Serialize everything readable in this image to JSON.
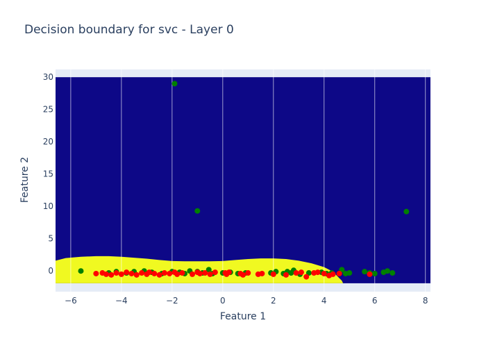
{
  "chart_data": {
    "type": "scatter",
    "title": "Decision boundary for svc - Layer 0",
    "xlabel": "Feature 1",
    "ylabel": "Feature 2",
    "xlim": [
      -6.6,
      8.2
    ],
    "ylim": [
      -3.2,
      31.2
    ],
    "x_ticks": [
      -6,
      -4,
      -2,
      0,
      2,
      4,
      6,
      8
    ],
    "y_ticks": [
      0,
      5,
      10,
      15,
      20,
      25,
      30
    ],
    "grid": true,
    "legend": "none",
    "colors": {
      "background": "#e5ecf6",
      "region_class_0": "#0d0887",
      "region_class_1": "#f0f921",
      "class_0_points": "#ff0000",
      "class_1_points": "#008000"
    },
    "regions": {
      "x_range": [
        -6.6,
        8.2
      ],
      "y_range": [
        -1.9,
        30
      ],
      "boundary_x": [
        -6.6,
        -6.2,
        -5.6,
        -5.0,
        -4.5,
        -4.0,
        -3.5,
        -3.0,
        -2.5,
        -2.0,
        -1.5,
        -1.0,
        -0.5,
        0.0,
        0.5,
        1.0,
        1.5,
        2.0,
        2.5,
        3.0,
        3.5,
        4.0,
        4.3,
        4.5,
        4.6,
        4.7,
        4.75
      ],
      "boundary_y": [
        1.6,
        2.0,
        2.2,
        2.3,
        2.3,
        2.2,
        2.05,
        1.9,
        1.7,
        1.55,
        1.5,
        1.5,
        1.5,
        1.55,
        1.7,
        1.85,
        1.95,
        1.95,
        1.85,
        1.6,
        1.2,
        0.6,
        0.0,
        -0.7,
        -1.1,
        -1.5,
        -1.9
      ]
    },
    "series": [
      {
        "class": 1,
        "x": [
          -5.6,
          -4.5,
          -4.2,
          -3.8,
          -3.5,
          -3.1,
          -2.8,
          -2.4,
          -2.0,
          -1.7,
          -1.5,
          -1.3,
          -1.0,
          -0.8,
          -0.55,
          -0.4,
          0.0,
          0.3,
          0.6,
          0.9,
          1.9,
          2.1,
          2.4,
          2.55,
          2.7,
          2.8,
          3.05,
          3.4,
          3.9,
          4.1,
          4.3,
          4.7,
          4.85,
          5.0,
          5.6,
          5.8,
          6.0,
          6.35,
          6.5,
          6.7,
          7.25,
          -1.9,
          -1.0
        ],
        "y": [
          0.0,
          -0.3,
          -0.1,
          -0.3,
          -0.1,
          0.0,
          -0.2,
          -0.4,
          -0.1,
          -0.2,
          -0.4,
          0.0,
          -0.1,
          -0.3,
          0.2,
          -0.4,
          -0.3,
          -0.2,
          -0.4,
          -0.3,
          -0.3,
          -0.1,
          -0.4,
          -0.1,
          -0.3,
          0.1,
          -0.5,
          -0.3,
          -0.2,
          -0.4,
          -0.3,
          0.2,
          -0.4,
          -0.3,
          -0.1,
          -0.3,
          -0.4,
          -0.2,
          0.0,
          -0.3,
          9.2,
          29.0,
          9.3
        ]
      },
      {
        "class": 0,
        "x": [
          -5.0,
          -4.75,
          -4.6,
          -4.4,
          -4.2,
          -4.0,
          -3.8,
          -3.6,
          -3.4,
          -3.2,
          -3.0,
          -2.9,
          -2.7,
          -2.5,
          -2.3,
          -2.1,
          -1.9,
          -1.8,
          -1.6,
          -1.2,
          -1.0,
          -0.9,
          -0.7,
          -0.5,
          -0.3,
          0.1,
          0.15,
          0.25,
          0.7,
          0.8,
          1.0,
          1.4,
          1.55,
          2.0,
          2.5,
          2.9,
          3.1,
          3.3,
          3.6,
          3.75,
          4.0,
          4.2,
          4.35,
          4.6,
          5.8
        ],
        "y": [
          -0.4,
          -0.3,
          -0.5,
          -0.6,
          -0.3,
          -0.5,
          -0.2,
          -0.4,
          -0.6,
          -0.3,
          -0.5,
          -0.2,
          -0.4,
          -0.6,
          -0.3,
          -0.4,
          -0.2,
          -0.5,
          -0.3,
          -0.5,
          -0.2,
          -0.4,
          -0.3,
          -0.5,
          -0.2,
          -0.3,
          -0.5,
          -0.2,
          -0.4,
          -0.6,
          -0.3,
          -0.5,
          -0.4,
          -0.5,
          -0.6,
          -0.3,
          -0.2,
          -0.9,
          -0.3,
          -0.2,
          -0.4,
          -0.7,
          -0.5,
          -0.4,
          -0.5
        ]
      }
    ]
  }
}
